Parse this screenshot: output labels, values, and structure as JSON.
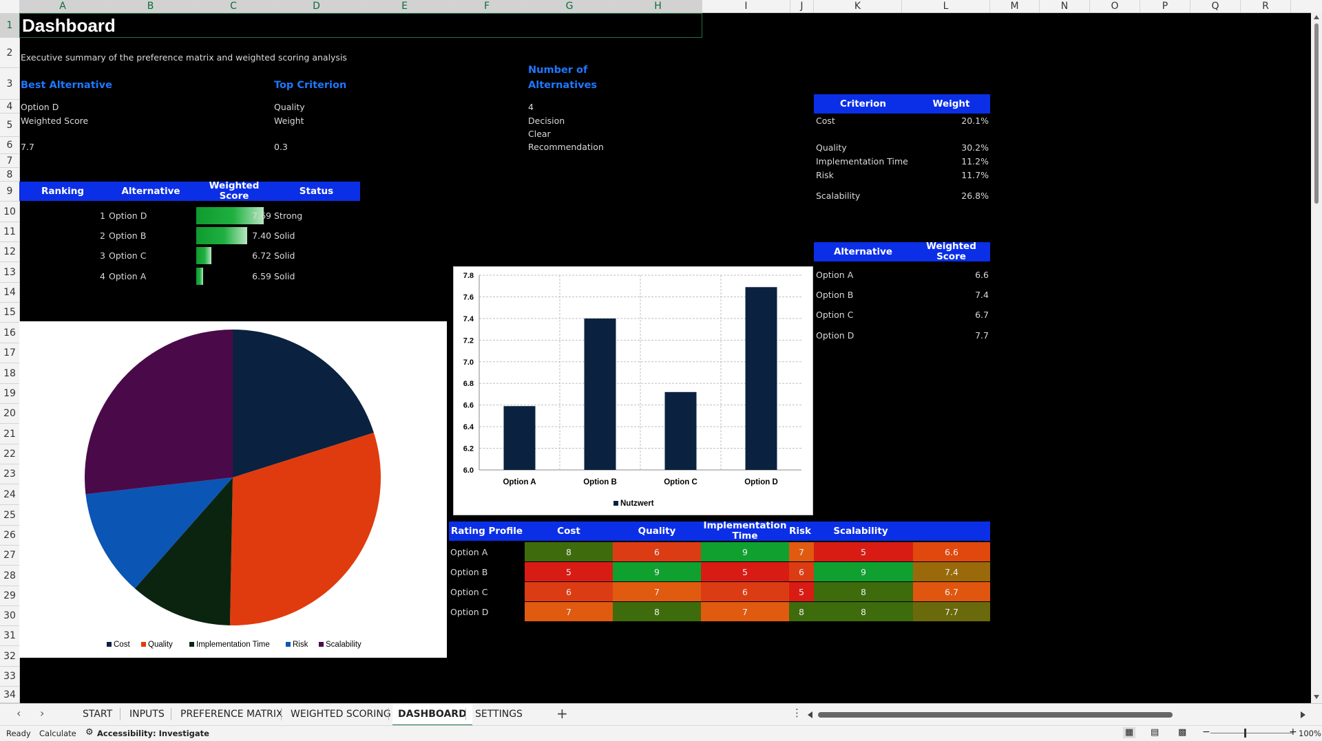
{
  "columns": [
    "A",
    "B",
    "C",
    "D",
    "E",
    "F",
    "G",
    "H",
    "I",
    "J",
    "K",
    "L",
    "M",
    "N",
    "O",
    "P",
    "Q",
    "R"
  ],
  "rows": [
    "1",
    "2",
    "3",
    "4",
    "5",
    "6",
    "7",
    "8",
    "9",
    "10",
    "11",
    "12",
    "13",
    "14",
    "15",
    "16",
    "17",
    "18",
    "19",
    "20",
    "21",
    "22",
    "23",
    "24",
    "25",
    "26",
    "27",
    "28",
    "29",
    "30",
    "31",
    "32",
    "33",
    "34"
  ],
  "title": "Dashboard",
  "subtitle": "Executive summary of the preference matrix and weighted scoring analysis",
  "kpi": {
    "best_alt_label": "Best Alternative",
    "best_alt_value": "Option D",
    "best_alt_sub": "Weighted Score",
    "best_alt_score": "7.7",
    "top_crit_label": "Top Criterion",
    "top_crit_value": "Quality",
    "top_crit_sub": "Weight",
    "top_crit_score": "0.3",
    "num_alt_label1": "Number of",
    "num_alt_label2": "Alternatives",
    "num_alt_value": "4",
    "num_alt_sub1": "Decision",
    "num_alt_sub2": "Clear",
    "num_alt_sub3": "Recommendation"
  },
  "ranking": {
    "headers": [
      "Ranking",
      "Alternative",
      "Weighted Score",
      "Status"
    ],
    "rows": [
      {
        "rank": "1",
        "alt": "Option D",
        "score": "7.69",
        "status": "Strong",
        "bar": 0.75
      },
      {
        "rank": "2",
        "alt": "Option B",
        "score": "7.40",
        "status": "Solid",
        "bar": 0.57
      },
      {
        "rank": "3",
        "alt": "Option C",
        "score": "6.72",
        "status": "Solid",
        "bar": 0.17
      },
      {
        "rank": "4",
        "alt": "Option A",
        "score": "6.59",
        "status": "Solid",
        "bar": 0.08
      }
    ]
  },
  "weights": {
    "headers": [
      "Criterion",
      "Weight"
    ],
    "rows": [
      {
        "name": "Cost",
        "value": "20.1%"
      },
      {
        "name": "Quality",
        "value": "30.2%"
      },
      {
        "name": "Implementation Time",
        "value": "11.2%"
      },
      {
        "name": "Risk",
        "value": "11.7%"
      },
      {
        "name": "Scalability",
        "value": "26.8%"
      }
    ]
  },
  "alt_scores": {
    "headers": [
      "Alternative",
      "Weighted Score"
    ],
    "rows": [
      {
        "name": "Option A",
        "value": "6.6"
      },
      {
        "name": "Option B",
        "value": "7.4"
      },
      {
        "name": "Option C",
        "value": "6.7"
      },
      {
        "name": "Option D",
        "value": "7.7"
      }
    ]
  },
  "rating_profile": {
    "headers": [
      "Rating Profile",
      "Cost",
      "Quality",
      "Implementation Time",
      "Risk",
      "Scalability",
      ""
    ],
    "rows": [
      {
        "name": "Option A",
        "cells": [
          "8",
          "6",
          "9",
          "7",
          "5",
          "6.6"
        ],
        "colors": [
          "#3e6b0c",
          "#db3c14",
          "#10a030",
          "#e05a10",
          "#d81c14",
          "#e0480e"
        ]
      },
      {
        "name": "Option B",
        "cells": [
          "5",
          "9",
          "5",
          "6",
          "9",
          "7.4"
        ],
        "colors": [
          "#d81c14",
          "#10a030",
          "#d81c14",
          "#db3c14",
          "#10a030",
          "#9a6a0a"
        ]
      },
      {
        "name": "Option C",
        "cells": [
          "6",
          "7",
          "6",
          "5",
          "8",
          "6.7"
        ],
        "colors": [
          "#db3c14",
          "#e05a10",
          "#db3c14",
          "#d81c14",
          "#3e6b0c",
          "#e0560e"
        ]
      },
      {
        "name": "Option D",
        "cells": [
          "7",
          "8",
          "7",
          "8",
          "8",
          "7.7"
        ],
        "colors": [
          "#e05a10",
          "#3e6b0c",
          "#e05a10",
          "#3e6b0c",
          "#3e6b0c",
          "#6a6a0c"
        ]
      }
    ]
  },
  "chart_data": [
    {
      "type": "pie",
      "categories": [
        "Cost",
        "Quality",
        "Implementation Time",
        "Risk",
        "Scalability"
      ],
      "values": [
        20.1,
        30.2,
        11.2,
        11.7,
        26.8
      ],
      "colors": [
        "#0b2140",
        "#e03b0e",
        "#0b2410",
        "#0b55b5",
        "#4a0a4a"
      ],
      "legend_position": "bottom"
    },
    {
      "type": "bar",
      "categories": [
        "Option A",
        "Option B",
        "Option C",
        "Option D"
      ],
      "series": [
        {
          "name": "Nutzwert",
          "values": [
            6.59,
            7.4,
            6.72,
            7.69
          ]
        }
      ],
      "ylim": [
        6.0,
        7.8
      ],
      "yticks": [
        "6.0",
        "6.2",
        "6.4",
        "6.6",
        "6.8",
        "7.0",
        "7.2",
        "7.4",
        "7.6",
        "7.8"
      ],
      "color": "#0b2140",
      "grid": true,
      "legend_position": "bottom"
    }
  ],
  "tabs": [
    "START",
    "INPUTS",
    "PREFERENCE MATRIX",
    "WEIGHTED SCORING",
    "DASHBOARD",
    "SETTINGS"
  ],
  "active_tab": "DASHBOARD",
  "status": {
    "ready": "Ready",
    "calculate": "Calculate",
    "accessibility": "Accessibility: Investigate",
    "zoom": "100%"
  }
}
